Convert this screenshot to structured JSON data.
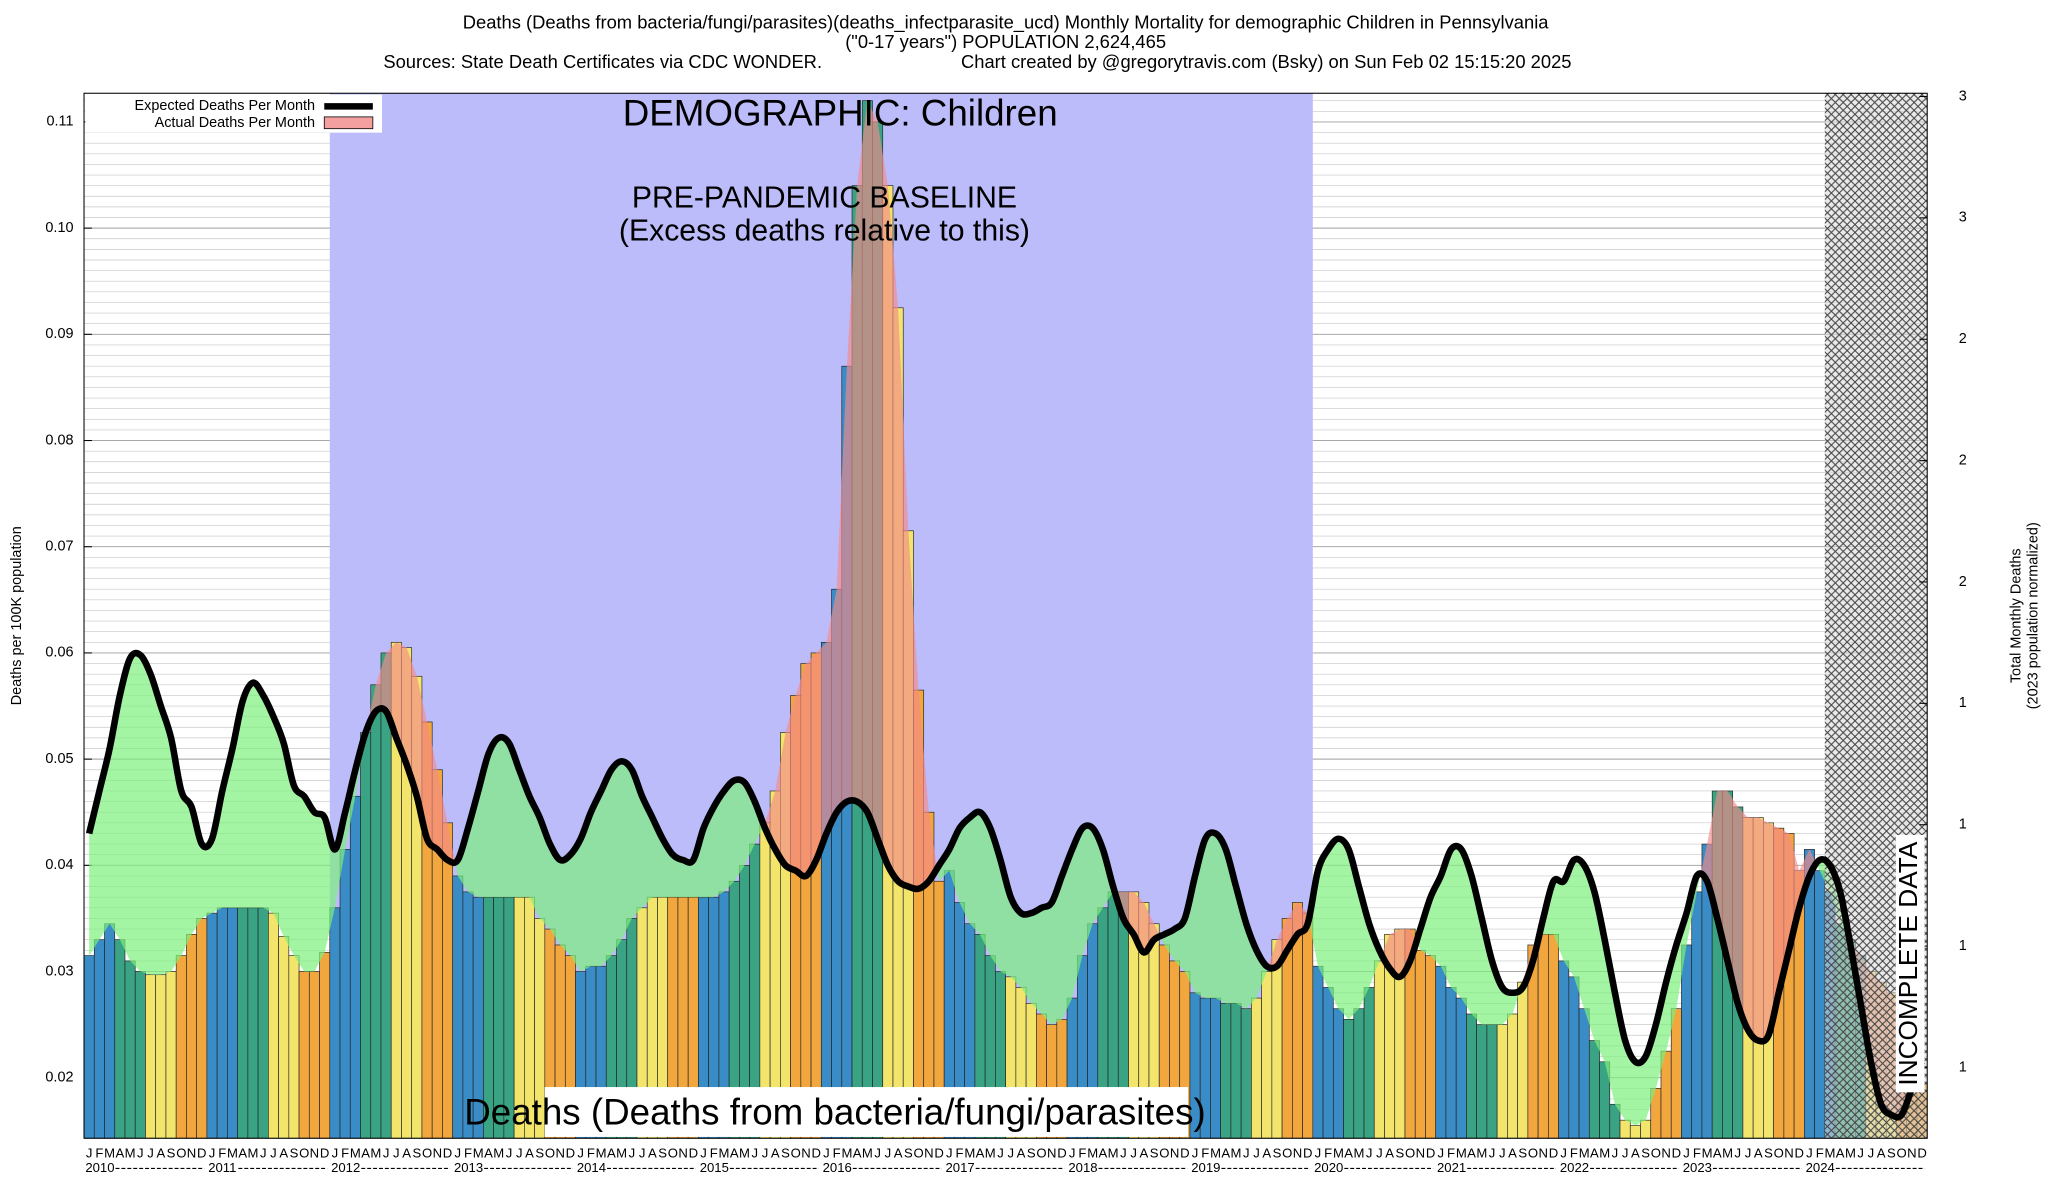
{
  "chart_data": {
    "type": "bar",
    "title": "Deaths (Deaths from bacteria/fungi/parasites)(deaths_infectparasite_ucd) Monthly Mortality for demographic Children in Pennsylvania",
    "subtitle": "(\"0-17 years\") POPULATION 2,624,465",
    "sources": "Sources: State Death Certificates via CDC WONDER.",
    "credit": "Chart created by @gregorytravis.com (Bsky) on Sun Feb 02 15:15:20 2025",
    "demographic_label": "DEMOGRAPHIC: Children",
    "baseline_label": "PRE-PANDEMIC BASELINE",
    "baseline_note": "(Excess deaths relative to this)",
    "incomplete_label": "INCOMPLETE DATA",
    "cause_label": "Deaths (Deaths from bacteria/fungi/parasites)",
    "y_label": "Deaths per 100K population",
    "y2_label": [
      "Total Monthly Deaths",
      "(2023 population normalized)"
    ],
    "categories": [
      "J",
      "F",
      "M",
      "A",
      "M",
      "J",
      "J",
      "A",
      "S",
      "O",
      "N",
      "D",
      "J",
      "F",
      "M",
      "A",
      "M",
      "J",
      "J",
      "A",
      "S",
      "O",
      "N",
      "D",
      "J",
      "F",
      "M",
      "A",
      "M",
      "J",
      "J",
      "A",
      "S",
      "O",
      "N",
      "D",
      "J",
      "F",
      "M",
      "A",
      "M",
      "J",
      "J",
      "A",
      "S",
      "O",
      "N",
      "D",
      "J",
      "F",
      "M",
      "A",
      "M",
      "J",
      "J",
      "A",
      "S",
      "O",
      "N",
      "D",
      "J",
      "F",
      "M",
      "A",
      "M",
      "J",
      "J",
      "A",
      "S",
      "O",
      "N",
      "D",
      "J",
      "F",
      "M",
      "A",
      "M",
      "J",
      "J",
      "A",
      "S",
      "O",
      "N",
      "D",
      "J",
      "F",
      "M",
      "A",
      "M",
      "J",
      "J",
      "A",
      "S",
      "O",
      "N",
      "D",
      "J",
      "F",
      "M",
      "A",
      "M",
      "J",
      "J",
      "A",
      "S",
      "O",
      "N",
      "D",
      "J",
      "F",
      "M",
      "A",
      "M",
      "J",
      "J",
      "A",
      "S",
      "O",
      "N",
      "D",
      "J",
      "F",
      "M",
      "A",
      "M",
      "J",
      "J",
      "A",
      "S",
      "O",
      "N",
      "D",
      "J",
      "F",
      "M",
      "A",
      "M",
      "J",
      "J",
      "A",
      "S",
      "O",
      "N",
      "D",
      "J",
      "F",
      "M",
      "A",
      "M",
      "J",
      "J",
      "A",
      "S",
      "O",
      "N",
      "D",
      "J",
      "F",
      "M",
      "A",
      "M",
      "J",
      "J",
      "A",
      "S",
      "O",
      "N",
      "D",
      "J",
      "F",
      "M",
      "A",
      "M",
      "J",
      "J",
      "A",
      "S",
      "O",
      "N",
      "D"
    ],
    "years": [
      "2010",
      "2011",
      "2012",
      "2013",
      "2014",
      "2015",
      "2016",
      "2017",
      "2018",
      "2019",
      "2020",
      "2021",
      "2022",
      "2023",
      "2024"
    ],
    "series": [
      {
        "name": "Expected Deaths Per Month",
        "color": "#000000",
        "values": [
          0.043,
          0.047,
          0.051,
          0.056,
          0.0595,
          0.0598,
          0.058,
          0.055,
          0.052,
          0.047,
          0.0455,
          0.042,
          0.0425,
          0.047,
          0.051,
          0.0555,
          0.0572,
          0.056,
          0.054,
          0.0515,
          0.0475,
          0.0465,
          0.045,
          0.0445,
          0.0415,
          0.045,
          0.049,
          0.0525,
          0.0545,
          0.0545,
          0.052,
          0.0495,
          0.0465,
          0.0425,
          0.0415,
          0.0405,
          0.0405,
          0.0435,
          0.047,
          0.0505,
          0.052,
          0.0515,
          0.049,
          0.0465,
          0.0445,
          0.042,
          0.0405,
          0.041,
          0.0425,
          0.045,
          0.047,
          0.049,
          0.0498,
          0.049,
          0.0465,
          0.0445,
          0.0425,
          0.041,
          0.0405,
          0.0405,
          0.0435,
          0.0455,
          0.047,
          0.048,
          0.0478,
          0.046,
          0.0435,
          0.0415,
          0.04,
          0.0395,
          0.039,
          0.0405,
          0.043,
          0.045,
          0.046,
          0.046,
          0.045,
          0.0425,
          0.04,
          0.0385,
          0.038,
          0.0378,
          0.0385,
          0.04,
          0.0415,
          0.0435,
          0.0445,
          0.045,
          0.0435,
          0.0405,
          0.037,
          0.0355,
          0.0355,
          0.036,
          0.0365,
          0.039,
          0.0415,
          0.0435,
          0.0435,
          0.0415,
          0.038,
          0.035,
          0.0335,
          0.0318,
          0.033,
          0.0335,
          0.034,
          0.035,
          0.039,
          0.0425,
          0.043,
          0.0415,
          0.038,
          0.0345,
          0.032,
          0.0305,
          0.0305,
          0.032,
          0.0335,
          0.0345,
          0.0395,
          0.0415,
          0.0425,
          0.0415,
          0.038,
          0.0345,
          0.032,
          0.0303,
          0.0295,
          0.031,
          0.034,
          0.037,
          0.039,
          0.0415,
          0.0415,
          0.039,
          0.035,
          0.031,
          0.0285,
          0.028,
          0.0285,
          0.031,
          0.035,
          0.0385,
          0.0385,
          0.0405,
          0.04,
          0.0375,
          0.033,
          0.028,
          0.0235,
          0.0215,
          0.022,
          0.025,
          0.029,
          0.0325,
          0.0355,
          0.039,
          0.0385,
          0.035,
          0.031,
          0.027,
          0.0245,
          0.0235,
          0.024,
          0.028,
          0.032,
          0.036,
          0.039,
          0.0405,
          0.04,
          0.0375,
          0.0325,
          0.027,
          0.0215,
          0.0175,
          0.0165,
          0.0165,
          0.019,
          0.0215
        ]
      },
      {
        "name": "Actual Deaths Per Month",
        "color": "#f4a0a0",
        "values": [
          0.0315,
          0.033,
          0.0345,
          0.033,
          0.031,
          0.03,
          0.0297,
          0.0297,
          0.03,
          0.0315,
          0.0335,
          0.035,
          0.0355,
          0.036,
          0.036,
          0.036,
          0.036,
          0.036,
          0.0355,
          0.0333,
          0.0315,
          0.03,
          0.03,
          0.0318,
          0.036,
          0.0415,
          0.0465,
          0.0525,
          0.057,
          0.06,
          0.061,
          0.0605,
          0.0578,
          0.0535,
          0.049,
          0.044,
          0.039,
          0.0375,
          0.037,
          0.037,
          0.037,
          0.037,
          0.037,
          0.037,
          0.035,
          0.034,
          0.0325,
          0.0315,
          0.03,
          0.0305,
          0.0305,
          0.0315,
          0.033,
          0.035,
          0.036,
          0.037,
          0.037,
          0.037,
          0.037,
          0.037,
          0.037,
          0.037,
          0.0375,
          0.0385,
          0.04,
          0.042,
          0.044,
          0.047,
          0.0525,
          0.056,
          0.059,
          0.06,
          0.061,
          0.066,
          0.087,
          0.104,
          0.112,
          0.11,
          0.104,
          0.0925,
          0.0715,
          0.0565,
          0.045,
          0.0385,
          0.0395,
          0.0365,
          0.0345,
          0.0335,
          0.0315,
          0.03,
          0.0295,
          0.0285,
          0.027,
          0.026,
          0.025,
          0.0255,
          0.0275,
          0.0315,
          0.0345,
          0.036,
          0.0375,
          0.0375,
          0.0375,
          0.0365,
          0.0345,
          0.0325,
          0.031,
          0.03,
          0.028,
          0.0275,
          0.0275,
          0.027,
          0.027,
          0.0265,
          0.0275,
          0.03,
          0.033,
          0.035,
          0.0365,
          0.0355,
          0.0305,
          0.0285,
          0.0265,
          0.0255,
          0.0265,
          0.0285,
          0.031,
          0.0335,
          0.034,
          0.034,
          0.032,
          0.0315,
          0.0305,
          0.0285,
          0.0275,
          0.026,
          0.025,
          0.025,
          0.025,
          0.026,
          0.029,
          0.0325,
          0.0335,
          0.0335,
          0.031,
          0.0295,
          0.0265,
          0.0235,
          0.0215,
          0.0175,
          0.016,
          0.0155,
          0.016,
          0.019,
          0.0225,
          0.0265,
          0.0325,
          0.0375,
          0.042,
          0.047,
          0.047,
          0.0455,
          0.0445,
          0.0445,
          0.044,
          0.0435,
          0.043,
          0.0395,
          0.0415,
          0.0395,
          0.0375,
          0.0345,
          0.033,
          0.0315,
          0.03,
          0.029,
          0.028,
          0.0255,
          0.022,
          0.0195
        ]
      }
    ],
    "bar_colors": [
      "#3a8cc6",
      "#3aa383",
      "#f3e56c",
      "#f2a63e"
    ],
    "band_colors": {
      "deficit": "#7cf07c",
      "excess": "#f48a8a"
    },
    "baseline_color": "#bcbcfb",
    "ylim": [
      0.0143,
      0.1127
    ],
    "yticks": [
      0.02,
      0.03,
      0.04,
      0.05,
      0.06,
      0.07,
      0.08,
      0.09,
      {
        "value": 0.1,
        "label": "0.10"
      },
      0.11
    ],
    "y2lim": [
      0.375,
      2.958
    ],
    "y2ticks": [
      {
        "value": 2.95,
        "label": "3"
      },
      {
        "value": 2.65,
        "label": "3"
      },
      {
        "value": 2.35,
        "label": "2"
      },
      {
        "value": 2.05,
        "label": "2"
      },
      {
        "value": 1.75,
        "label": "2"
      },
      {
        "value": 1.45,
        "label": "1"
      },
      {
        "value": 1.15,
        "label": "1"
      },
      {
        "value": 0.85,
        "label": "1"
      },
      {
        "value": 0.55,
        "label": "1"
      }
    ],
    "grid": true,
    "minor_grid": true,
    "legend": "top-left"
  }
}
